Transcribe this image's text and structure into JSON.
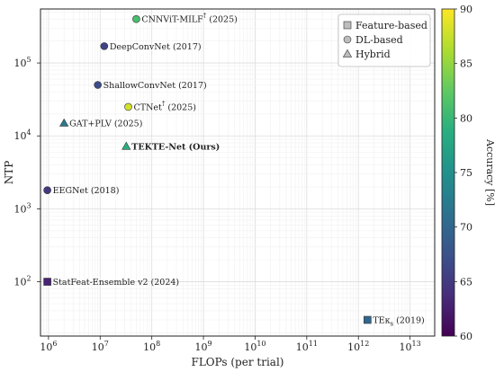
{
  "chart_data": {
    "type": "scatter",
    "xlabel": "FLOPs (per trial)",
    "ylabel": "NTP",
    "xscale": "log",
    "yscale": "log",
    "xlim": [
      700000,
      30000000000000
    ],
    "ylim": [
      18,
      550000
    ],
    "x_ticks": [
      {
        "base": "10",
        "exp": "6"
      },
      {
        "base": "10",
        "exp": "7"
      },
      {
        "base": "10",
        "exp": "8"
      },
      {
        "base": "10",
        "exp": "9"
      },
      {
        "base": "10",
        "exp": "10"
      },
      {
        "base": "10",
        "exp": "11"
      },
      {
        "base": "10",
        "exp": "12"
      },
      {
        "base": "10",
        "exp": "13"
      }
    ],
    "y_ticks": [
      {
        "base": "10",
        "exp": "2"
      },
      {
        "base": "10",
        "exp": "3"
      },
      {
        "base": "10",
        "exp": "4"
      },
      {
        "base": "10",
        "exp": "5"
      }
    ],
    "grid": true,
    "legend_position": "top-right",
    "legend": [
      {
        "marker": "square",
        "label": "Feature-based"
      },
      {
        "marker": "circle",
        "label": "DL-based"
      },
      {
        "marker": "triangle",
        "label": "Hybrid"
      }
    ],
    "colorbar": {
      "label": "Accuracy [%]",
      "range": [
        60,
        90
      ],
      "ticks": [
        "60",
        "65",
        "70",
        "75",
        "80",
        "85",
        "90"
      ]
    },
    "points": [
      {
        "name": "CNNViT-MILF",
        "sup": "†",
        "suffix": " (2025)",
        "x": 50000000,
        "y": 400000,
        "marker": "circle",
        "accuracy": 81,
        "bold": false
      },
      {
        "name": "DeepConvNet (2017)",
        "sup": "",
        "suffix": "",
        "x": 12000000,
        "y": 170000,
        "marker": "circle",
        "accuracy": 66,
        "bold": false
      },
      {
        "name": "ShallowConvNet (2017)",
        "sup": "",
        "suffix": "",
        "x": 9000000,
        "y": 50000,
        "marker": "circle",
        "accuracy": 67,
        "bold": false
      },
      {
        "name": "CTNet",
        "sup": "†",
        "suffix": " (2025)",
        "x": 35000000,
        "y": 25000,
        "marker": "circle",
        "accuracy": 88,
        "bold": false
      },
      {
        "name": "GAT+PLV (2025)",
        "sup": "",
        "suffix": "",
        "x": 2000000,
        "y": 15000,
        "marker": "triangle",
        "accuracy": 72,
        "bold": false
      },
      {
        "name": "TEKTE-Net (Ours)",
        "sup": "",
        "suffix": "",
        "x": 32000000,
        "y": 7200,
        "marker": "triangle",
        "accuracy": 79,
        "bold": true
      },
      {
        "name": "EEGNet (2018)",
        "sup": "",
        "suffix": "",
        "x": 950000,
        "y": 1800,
        "marker": "circle",
        "accuracy": 65,
        "bold": false
      },
      {
        "name": "StatFeat-Ensemble v2 (2024)",
        "sup": "",
        "suffix": "",
        "x": 950000,
        "y": 100,
        "marker": "square",
        "accuracy": 63,
        "bold": false
      },
      {
        "name": "TEκ",
        "sup": "",
        "sub": "s",
        "suffix": " (2019)",
        "x": 1500000000000,
        "y": 30,
        "marker": "square",
        "accuracy": 70,
        "bold": false
      }
    ]
  }
}
